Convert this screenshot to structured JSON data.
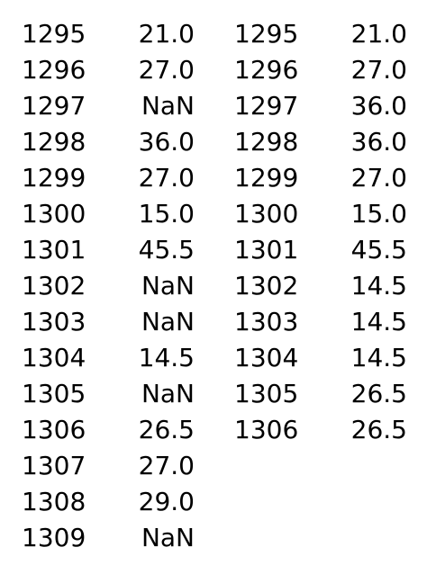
{
  "left_series": [
    {
      "index": "1295",
      "value": "21.0"
    },
    {
      "index": "1296",
      "value": "27.0"
    },
    {
      "index": "1297",
      "value": "NaN"
    },
    {
      "index": "1298",
      "value": "36.0"
    },
    {
      "index": "1299",
      "value": "27.0"
    },
    {
      "index": "1300",
      "value": "15.0"
    },
    {
      "index": "1301",
      "value": "45.5"
    },
    {
      "index": "1302",
      "value": "NaN"
    },
    {
      "index": "1303",
      "value": "NaN"
    },
    {
      "index": "1304",
      "value": "14.5"
    },
    {
      "index": "1305",
      "value": "NaN"
    },
    {
      "index": "1306",
      "value": "26.5"
    },
    {
      "index": "1307",
      "value": "27.0"
    },
    {
      "index": "1308",
      "value": "29.0"
    },
    {
      "index": "1309",
      "value": "NaN"
    }
  ],
  "right_series": [
    {
      "index": "1295",
      "value": "21.0"
    },
    {
      "index": "1296",
      "value": "27.0"
    },
    {
      "index": "1297",
      "value": "36.0"
    },
    {
      "index": "1298",
      "value": "36.0"
    },
    {
      "index": "1299",
      "value": "27.0"
    },
    {
      "index": "1300",
      "value": "15.0"
    },
    {
      "index": "1301",
      "value": "45.5"
    },
    {
      "index": "1302",
      "value": "14.5"
    },
    {
      "index": "1303",
      "value": "14.5"
    },
    {
      "index": "1304",
      "value": "14.5"
    },
    {
      "index": "1305",
      "value": "26.5"
    },
    {
      "index": "1306",
      "value": "26.5"
    }
  ]
}
